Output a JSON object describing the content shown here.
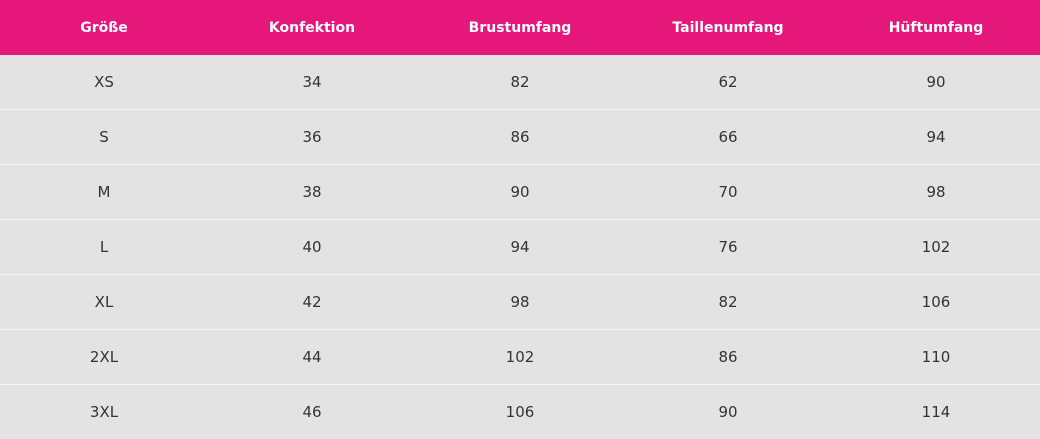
{
  "table": {
    "headers": [
      "Größe",
      "Konfektion",
      "Brustumfang",
      "Taillenumfang",
      "Hüftumfang"
    ],
    "rows": [
      [
        "XS",
        "34",
        "82",
        "62",
        "90"
      ],
      [
        "S",
        "36",
        "86",
        "66",
        "94"
      ],
      [
        "M",
        "38",
        "90",
        "70",
        "98"
      ],
      [
        "L",
        "40",
        "94",
        "76",
        "102"
      ],
      [
        "XL",
        "42",
        "98",
        "82",
        "106"
      ],
      [
        "2XL",
        "44",
        "102",
        "86",
        "110"
      ],
      [
        "3XL",
        "46",
        "106",
        "90",
        "114"
      ]
    ]
  },
  "colors": {
    "header_background": "#e5177b",
    "header_text": "#ffffff",
    "row_background": "#e3e3e3",
    "row_divider": "#f5f5f5"
  }
}
